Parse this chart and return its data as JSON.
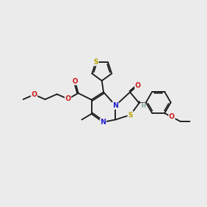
{
  "background_color": "#ebebeb",
  "bond_color": "#1a1a1a",
  "bond_width": 1.4,
  "atom_colors": {
    "S": "#b8a000",
    "N": "#1a1acc",
    "O": "#cc1a1a",
    "H": "#7aaa9a",
    "C": "#1a1a1a"
  },
  "font_size": 7.0,
  "figsize": [
    3.0,
    3.0
  ],
  "dpi": 100,
  "xlim": [
    0,
    10
  ],
  "ylim": [
    0,
    10
  ]
}
